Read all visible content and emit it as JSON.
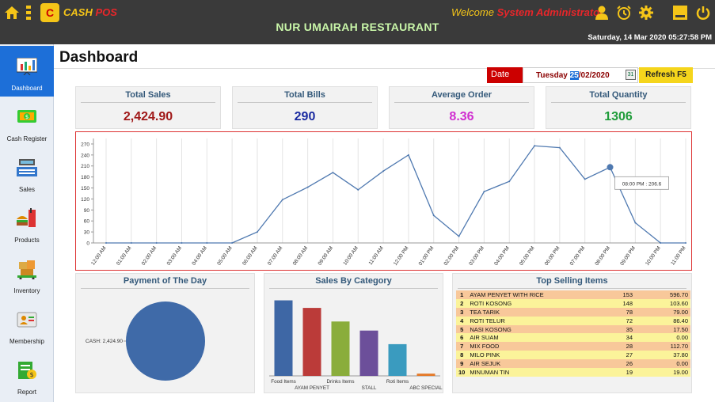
{
  "topbar": {
    "brand_part1": "CASH",
    "brand_part2": "POS",
    "logo_letter": "C",
    "restaurant_name": "NUR UMAIRAH RESTAURANT",
    "welcome_label": "Welcome",
    "user_name": "System Administrator",
    "datetime": "Saturday, 14 Mar 2020 05:27:58 PM"
  },
  "sidebar": {
    "items": [
      {
        "label": "Dashboard"
      },
      {
        "label": "Cash Register"
      },
      {
        "label": "Sales"
      },
      {
        "label": "Products"
      },
      {
        "label": "Inventory"
      },
      {
        "label": "Membership"
      },
      {
        "label": "Report"
      }
    ]
  },
  "main": {
    "title": "Dashboard",
    "date_label": "Date",
    "date_day": "Tuesday",
    "date_dd": "25",
    "date_rest": "/02/2020",
    "calendar_num": "31",
    "refresh_label": "Refresh  F5"
  },
  "stats": [
    {
      "label": "Total Sales",
      "value": "2,424.90",
      "color": "#a01818"
    },
    {
      "label": "Total Bills",
      "value": "290",
      "color": "#1a2aa0"
    },
    {
      "label": "Average Order",
      "value": "8.36",
      "color": "#d02ed0"
    },
    {
      "label": "Total Quantity",
      "value": "1306",
      "color": "#1f9c3a"
    }
  ],
  "hourly_chart": {
    "chart_data": {
      "type": "line",
      "x": [
        "12:00 AM",
        "01:00 AM",
        "02:00 AM",
        "03:00 AM",
        "04:00 AM",
        "05:00 AM",
        "06:00 AM",
        "07:00 AM",
        "08:00 AM",
        "09:00 AM",
        "10:00 AM",
        "11:00 AM",
        "12:00 PM",
        "01:00 PM",
        "02:00 PM",
        "03:00 PM",
        "04:00 PM",
        "05:00 PM",
        "06:00 PM",
        "07:00 PM",
        "08:00 PM",
        "09:00 PM",
        "10:00 PM",
        "11:00 PM"
      ],
      "values": [
        0,
        0,
        0,
        0,
        0,
        0,
        30,
        118,
        152,
        192,
        145,
        196,
        240,
        75,
        18,
        140,
        168,
        265,
        260,
        174,
        206.6,
        55,
        0,
        0
      ],
      "yticks": [
        0,
        30,
        60,
        90,
        120,
        150,
        180,
        210,
        240,
        270
      ],
      "ylim": [
        0,
        285
      ],
      "grid": true,
      "tooltip": {
        "label": "08:00 PM : 206.6",
        "index": 20
      },
      "line_color": "#4f79b0"
    }
  },
  "payment": {
    "title": "Payment of The Day",
    "chart_data": {
      "type": "pie",
      "labels": [
        "CASH"
      ],
      "values": [
        2424.9
      ],
      "slice_label": "CASH: 2,424.90",
      "colors": [
        "#3f6aa8"
      ]
    }
  },
  "category": {
    "title": "Sales By Category",
    "chart_data": {
      "type": "bar",
      "categories": [
        "Food Items",
        "AYAM PENYET",
        "Drinks Items",
        "STALL",
        "Roti Items",
        "ABC SPECIAL"
      ],
      "values": [
        100,
        90,
        72,
        60,
        42,
        3
      ],
      "ylim": [
        0,
        110
      ],
      "colors": [
        "#3e67a5",
        "#bb3b39",
        "#8aad3b",
        "#6c4f9a",
        "#3a9bbf",
        "#e47a2a"
      ]
    }
  },
  "top_selling": {
    "title": "Top Selling Items",
    "rows": [
      {
        "no": "1",
        "item": "AYAM PENYET WITH RICE",
        "qty": "153",
        "amount": "596.70"
      },
      {
        "no": "2",
        "item": "ROTI KOSONG",
        "qty": "148",
        "amount": "103.60"
      },
      {
        "no": "3",
        "item": "TEA TARIK",
        "qty": "78",
        "amount": "79.00"
      },
      {
        "no": "4",
        "item": "ROTI TELUR",
        "qty": "72",
        "amount": "86.40"
      },
      {
        "no": "5",
        "item": "NASI KOSONG",
        "qty": "35",
        "amount": "17.50"
      },
      {
        "no": "6",
        "item": "AIR SUAM",
        "qty": "34",
        "amount": "0.00"
      },
      {
        "no": "7",
        "item": "MIX FOOD",
        "qty": "28",
        "amount": "112.70"
      },
      {
        "no": "8",
        "item": "MILO PINK",
        "qty": "27",
        "amount": "37.80"
      },
      {
        "no": "9",
        "item": "AIR SEJUK",
        "qty": "26",
        "amount": "0.00"
      },
      {
        "no": "10",
        "item": "MINUMAN TIN",
        "qty": "19",
        "amount": "19.00"
      }
    ]
  },
  "icons": [
    "home-icon",
    "menu-icon",
    "user-icon",
    "alarm-icon",
    "gear-icon",
    "minimize-icon",
    "power-icon"
  ]
}
